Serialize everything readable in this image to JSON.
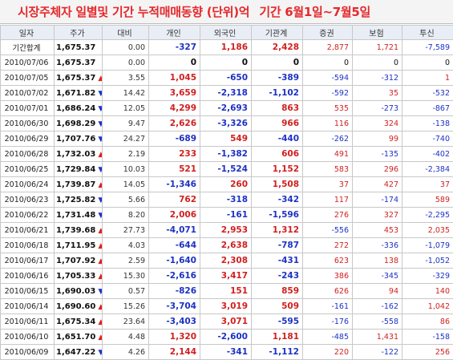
{
  "title": {
    "main": "시장주체자 일별및 기간 누적매매동향 (단위)억",
    "period": "기간 6월1일~7월5일"
  },
  "columns": [
    "일자",
    "주가",
    "대비",
    "개인",
    "외국인",
    "기관계",
    "증권",
    "보험",
    "투신"
  ],
  "colors": {
    "positive": "#d11f1f",
    "negative": "#1d32c4",
    "up_arrow": "#e0201e",
    "down_arrow": "#1a33c8"
  },
  "rows": [
    {
      "date": "기간합계",
      "price": "1,675.37",
      "dir": "",
      "chg": "0.00",
      "ind": "-327",
      "frg": "1,186",
      "inst": "2,428",
      "sec": "2,877",
      "ins": "1,721",
      "inv": "-7,589"
    },
    {
      "date": "2010/07/06",
      "price": "1,675.37",
      "dir": "",
      "chg": "0.00",
      "ind": "0",
      "frg": "0",
      "inst": "0",
      "sec": "0",
      "ins": "0",
      "inv": "0"
    },
    {
      "date": "2010/07/05",
      "price": "1,675.37",
      "dir": "up",
      "chg": "3.55",
      "ind": "1,045",
      "frg": "-650",
      "inst": "-389",
      "sec": "-594",
      "ins": "-312",
      "inv": "1"
    },
    {
      "date": "2010/07/02",
      "price": "1,671.82",
      "dir": "down",
      "chg": "14.42",
      "ind": "3,659",
      "frg": "-2,318",
      "inst": "-1,102",
      "sec": "-592",
      "ins": "35",
      "inv": "-532"
    },
    {
      "date": "2010/07/01",
      "price": "1,686.24",
      "dir": "down",
      "chg": "12.05",
      "ind": "4,299",
      "frg": "-2,693",
      "inst": "863",
      "sec": "535",
      "ins": "-273",
      "inv": "-867"
    },
    {
      "date": "2010/06/30",
      "price": "1,698.29",
      "dir": "down",
      "chg": "9.47",
      "ind": "2,626",
      "frg": "-3,326",
      "inst": "966",
      "sec": "116",
      "ins": "324",
      "inv": "-138"
    },
    {
      "date": "2010/06/29",
      "price": "1,707.76",
      "dir": "down",
      "chg": "24.27",
      "ind": "-689",
      "frg": "549",
      "inst": "-440",
      "sec": "-262",
      "ins": "99",
      "inv": "-740"
    },
    {
      "date": "2010/06/28",
      "price": "1,732.03",
      "dir": "up",
      "chg": "2.19",
      "ind": "233",
      "frg": "-1,382",
      "inst": "606",
      "sec": "491",
      "ins": "-135",
      "inv": "-402"
    },
    {
      "date": "2010/06/25",
      "price": "1,729.84",
      "dir": "down",
      "chg": "10.03",
      "ind": "521",
      "frg": "-1,524",
      "inst": "1,152",
      "sec": "583",
      "ins": "296",
      "inv": "-2,384"
    },
    {
      "date": "2010/06/24",
      "price": "1,739.87",
      "dir": "up",
      "chg": "14.05",
      "ind": "-1,346",
      "frg": "260",
      "inst": "1,508",
      "sec": "37",
      "ins": "427",
      "inv": "37"
    },
    {
      "date": "2010/06/23",
      "price": "1,725.82",
      "dir": "down",
      "chg": "5.66",
      "ind": "762",
      "frg": "-318",
      "inst": "-342",
      "sec": "117",
      "ins": "-174",
      "inv": "589"
    },
    {
      "date": "2010/06/22",
      "price": "1,731.48",
      "dir": "down",
      "chg": "8.20",
      "ind": "2,006",
      "frg": "-161",
      "inst": "-1,596",
      "sec": "276",
      "ins": "327",
      "inv": "-2,295"
    },
    {
      "date": "2010/06/21",
      "price": "1,739.68",
      "dir": "up",
      "chg": "27.73",
      "ind": "-4,071",
      "frg": "2,953",
      "inst": "1,312",
      "sec": "-556",
      "ins": "453",
      "inv": "2,035"
    },
    {
      "date": "2010/06/18",
      "price": "1,711.95",
      "dir": "up",
      "chg": "4.03",
      "ind": "-644",
      "frg": "2,638",
      "inst": "-787",
      "sec": "272",
      "ins": "-336",
      "inv": "-1,079"
    },
    {
      "date": "2010/06/17",
      "price": "1,707.92",
      "dir": "up",
      "chg": "2.59",
      "ind": "-1,640",
      "frg": "2,308",
      "inst": "-431",
      "sec": "623",
      "ins": "138",
      "inv": "-1,052"
    },
    {
      "date": "2010/06/16",
      "price": "1,705.33",
      "dir": "up",
      "chg": "15.30",
      "ind": "-2,616",
      "frg": "3,417",
      "inst": "-243",
      "sec": "386",
      "ins": "-345",
      "inv": "-329"
    },
    {
      "date": "2010/06/15",
      "price": "1,690.03",
      "dir": "down",
      "chg": "0.57",
      "ind": "-826",
      "frg": "151",
      "inst": "859",
      "sec": "626",
      "ins": "94",
      "inv": "140"
    },
    {
      "date": "2010/06/14",
      "price": "1,690.60",
      "dir": "up",
      "chg": "15.26",
      "ind": "-3,704",
      "frg": "3,019",
      "inst": "509",
      "sec": "-161",
      "ins": "-162",
      "inv": "1,042"
    },
    {
      "date": "2010/06/11",
      "price": "1,675.34",
      "dir": "up",
      "chg": "23.64",
      "ind": "-3,403",
      "frg": "3,071",
      "inst": "-595",
      "sec": "-176",
      "ins": "-558",
      "inv": "86"
    },
    {
      "date": "2010/06/10",
      "price": "1,651.70",
      "dir": "up",
      "chg": "4.48",
      "ind": "1,320",
      "frg": "-2,600",
      "inst": "1,181",
      "sec": "-485",
      "ins": "1,431",
      "inv": "-158"
    },
    {
      "date": "2010/06/09",
      "price": "1,647.22",
      "dir": "down",
      "chg": "4.26",
      "ind": "2,144",
      "frg": "-341",
      "inst": "-1,112",
      "sec": "220",
      "ins": "-122",
      "inv": "256"
    }
  ]
}
